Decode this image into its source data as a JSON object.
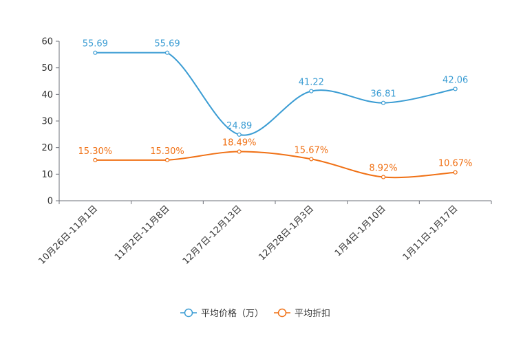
{
  "chart_data": {
    "type": "line",
    "title": "",
    "xlabel": "",
    "ylabel": "",
    "ylim": [
      0,
      60
    ],
    "yticks": [
      0,
      10,
      20,
      30,
      40,
      50,
      60
    ],
    "categories": [
      "10月26日-11月1日",
      "11月2日-11月8日",
      "12月7日-12月13日",
      "12月28日-1月3日",
      "1月4日-1月10日",
      "1月11日-1月17日"
    ],
    "series": [
      {
        "name": "平均价格（万）",
        "color": "#3a9cd3",
        "values": [
          55.69,
          55.69,
          24.89,
          41.22,
          36.81,
          42.06
        ],
        "labels": [
          "55.69",
          "55.69",
          "24.89",
          "41.22",
          "36.81",
          "42.06"
        ]
      },
      {
        "name": "平均折扣",
        "color": "#f07014",
        "values": [
          15.3,
          15.3,
          18.49,
          15.67,
          8.92,
          10.67
        ],
        "labels": [
          "15.30%",
          "15.30%",
          "18.49%",
          "15.67%",
          "8.92%",
          "10.67%"
        ]
      }
    ],
    "legend_position": "bottom-center",
    "grid": false
  }
}
